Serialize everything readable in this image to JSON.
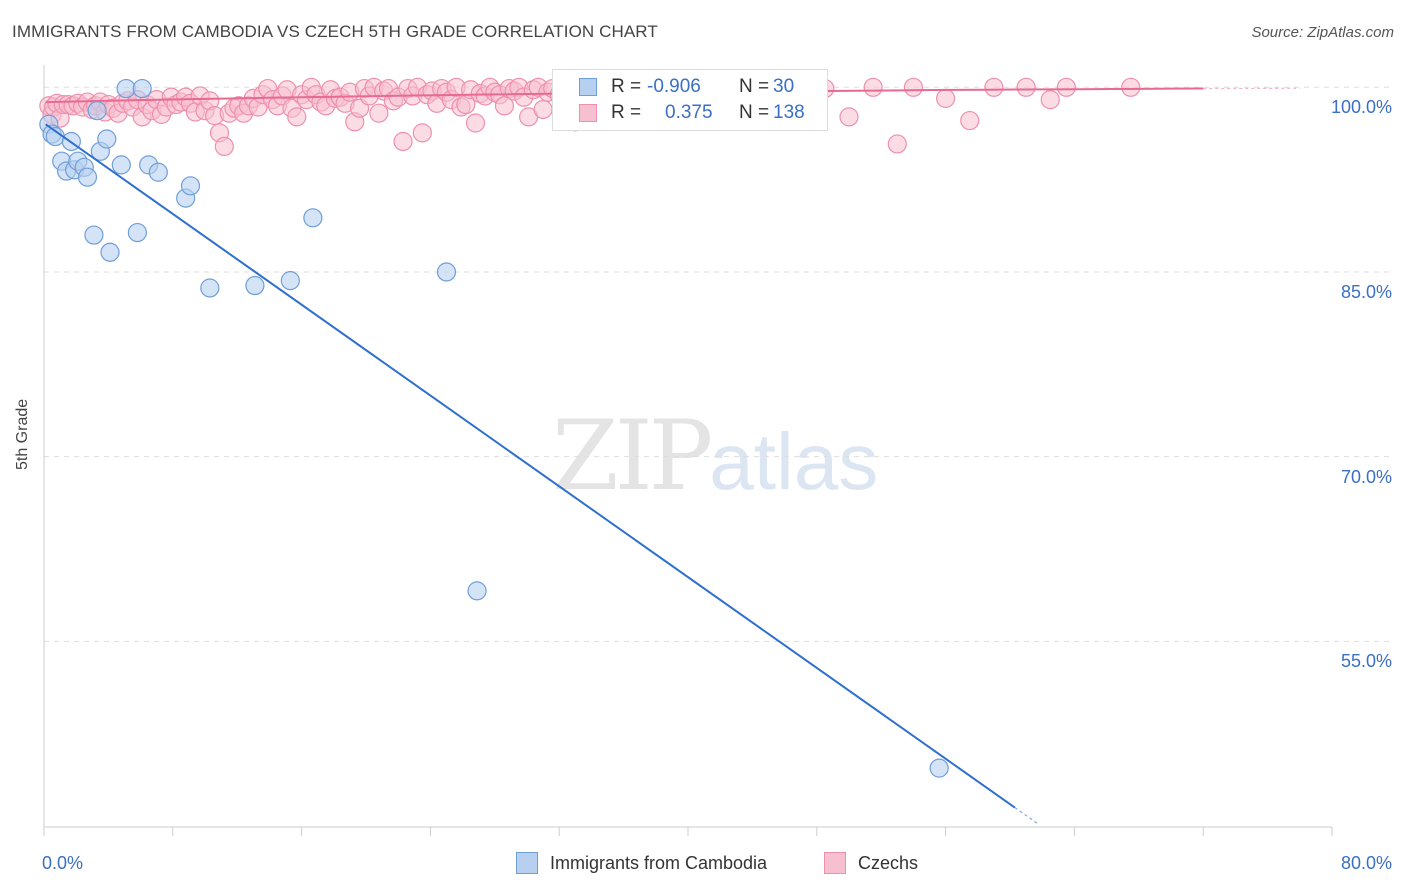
{
  "header": {
    "title": "IMMIGRANTS FROM CAMBODIA VS CZECH 5TH GRADE CORRELATION CHART",
    "source": "Source: ZipAtlas.com"
  },
  "watermark": {
    "zip": "ZIP",
    "atlas": "atlas"
  },
  "legend": {
    "rows": [
      {
        "r_label": "R =",
        "r_value": "-0.906",
        "n_label": "N =",
        "n_value": "30"
      },
      {
        "r_label": "R =",
        "r_value": "0.375",
        "n_label": "N =",
        "n_value": "138"
      }
    ]
  },
  "bottom_legend": {
    "series_a": "Immigrants from Cambodia",
    "series_b": "Czechs"
  },
  "colors": {
    "cambodia_fill": "#b8d0f0",
    "cambodia_stroke": "#6f9fd8",
    "cambodia_line": "#2e6fd0",
    "czech_fill": "#f7c0d0",
    "czech_stroke": "#ee90ad",
    "czech_line": "#e66a92",
    "axis_text": "#3a6fc4"
  },
  "chart_data": {
    "type": "scatter",
    "title": "IMMIGRANTS FROM CAMBODIA VS CZECH 5TH GRADE CORRELATION CHART",
    "xlabel": "",
    "ylabel": "5th Grade",
    "xlim": [
      0,
      80
    ],
    "ylim": [
      40,
      101
    ],
    "x_tick_labels": [
      "0.0%",
      "80.0%"
    ],
    "y_ticks": [
      100,
      85,
      70,
      55
    ],
    "y_tick_labels": [
      "100.0%",
      "85.0%",
      "70.0%",
      "55.0%"
    ],
    "grid": true,
    "legend_position": "top-center",
    "series": [
      {
        "name": "Immigrants from Cambodia",
        "r": -0.906,
        "n": 30,
        "trend": {
          "x": [
            0.1,
            60.3
          ],
          "y": [
            97.0,
            41.5
          ]
        },
        "points": [
          [
            0.3,
            97.0
          ],
          [
            0.5,
            96.2
          ],
          [
            0.7,
            96.0
          ],
          [
            1.1,
            94.0
          ],
          [
            1.4,
            93.2
          ],
          [
            1.7,
            95.6
          ],
          [
            1.9,
            93.3
          ],
          [
            2.1,
            94.0
          ],
          [
            2.5,
            93.5
          ],
          [
            2.7,
            92.7
          ],
          [
            3.1,
            88.0
          ],
          [
            3.3,
            98.1
          ],
          [
            3.5,
            94.8
          ],
          [
            3.9,
            95.8
          ],
          [
            4.1,
            86.6
          ],
          [
            4.8,
            93.7
          ],
          [
            5.1,
            99.9
          ],
          [
            5.8,
            88.2
          ],
          [
            6.1,
            99.9
          ],
          [
            6.5,
            93.7
          ],
          [
            7.1,
            93.1
          ],
          [
            8.8,
            91.0
          ],
          [
            9.1,
            92.0
          ],
          [
            10.3,
            83.7
          ],
          [
            13.1,
            83.9
          ],
          [
            15.3,
            84.3
          ],
          [
            16.7,
            89.4
          ],
          [
            25.0,
            85.0
          ],
          [
            26.9,
            59.1
          ],
          [
            55.6,
            44.7
          ]
        ]
      },
      {
        "name": "Czechs",
        "r": 0.375,
        "n": 138,
        "trend": {
          "x": [
            0.1,
            72.0
          ],
          "y": [
            98.8,
            99.9
          ]
        },
        "points": [
          [
            0.3,
            98.5
          ],
          [
            0.5,
            97.8
          ],
          [
            0.6,
            98.4
          ],
          [
            0.8,
            98.7
          ],
          [
            1.0,
            97.5
          ],
          [
            1.2,
            98.6
          ],
          [
            1.5,
            98.6
          ],
          [
            1.8,
            98.5
          ],
          [
            2.1,
            98.7
          ],
          [
            2.4,
            98.4
          ],
          [
            2.7,
            98.8
          ],
          [
            3.0,
            98.2
          ],
          [
            3.2,
            98.5
          ],
          [
            3.5,
            98.8
          ],
          [
            3.8,
            98.0
          ],
          [
            4.0,
            98.6
          ],
          [
            4.3,
            98.3
          ],
          [
            4.6,
            97.9
          ],
          [
            4.9,
            98.7
          ],
          [
            5.2,
            98.9
          ],
          [
            5.5,
            98.4
          ],
          [
            5.8,
            99.0
          ],
          [
            6.1,
            97.6
          ],
          [
            6.4,
            98.6
          ],
          [
            6.7,
            98.1
          ],
          [
            7.0,
            99.0
          ],
          [
            7.3,
            97.8
          ],
          [
            7.6,
            98.4
          ],
          [
            7.9,
            99.2
          ],
          [
            8.2,
            98.6
          ],
          [
            8.5,
            98.8
          ],
          [
            8.8,
            99.2
          ],
          [
            9.1,
            98.7
          ],
          [
            9.4,
            98.0
          ],
          [
            9.7,
            99.3
          ],
          [
            10.0,
            98.1
          ],
          [
            10.3,
            98.9
          ],
          [
            10.6,
            97.7
          ],
          [
            10.9,
            96.3
          ],
          [
            11.2,
            95.2
          ],
          [
            11.5,
            97.9
          ],
          [
            11.8,
            98.3
          ],
          [
            12.1,
            98.5
          ],
          [
            12.4,
            97.9
          ],
          [
            12.7,
            98.5
          ],
          [
            13.0,
            99.1
          ],
          [
            13.3,
            98.4
          ],
          [
            13.6,
            99.4
          ],
          [
            13.9,
            99.9
          ],
          [
            14.2,
            99.0
          ],
          [
            14.5,
            98.5
          ],
          [
            14.8,
            99.3
          ],
          [
            15.1,
            99.8
          ],
          [
            15.4,
            98.3
          ],
          [
            15.7,
            97.6
          ],
          [
            16.0,
            99.4
          ],
          [
            16.3,
            99.0
          ],
          [
            16.6,
            100.0
          ],
          [
            16.9,
            99.4
          ],
          [
            17.2,
            98.8
          ],
          [
            17.5,
            98.5
          ],
          [
            17.8,
            99.8
          ],
          [
            18.1,
            99.1
          ],
          [
            18.4,
            99.2
          ],
          [
            18.7,
            98.7
          ],
          [
            19.0,
            99.6
          ],
          [
            19.3,
            97.2
          ],
          [
            19.6,
            98.3
          ],
          [
            19.9,
            99.9
          ],
          [
            20.2,
            99.3
          ],
          [
            20.5,
            100.0
          ],
          [
            20.8,
            97.9
          ],
          [
            21.1,
            99.7
          ],
          [
            21.4,
            99.9
          ],
          [
            21.7,
            98.9
          ],
          [
            22.0,
            99.2
          ],
          [
            22.3,
            95.6
          ],
          [
            22.6,
            99.9
          ],
          [
            22.9,
            99.3
          ],
          [
            23.2,
            100.0
          ],
          [
            23.5,
            96.3
          ],
          [
            23.8,
            99.4
          ],
          [
            24.1,
            99.7
          ],
          [
            24.4,
            98.7
          ],
          [
            24.7,
            99.9
          ],
          [
            25.0,
            99.6
          ],
          [
            25.3,
            99.0
          ],
          [
            25.6,
            100.0
          ],
          [
            25.9,
            98.4
          ],
          [
            26.2,
            98.6
          ],
          [
            26.5,
            99.8
          ],
          [
            26.8,
            97.1
          ],
          [
            27.1,
            99.5
          ],
          [
            27.4,
            99.3
          ],
          [
            27.7,
            100.0
          ],
          [
            28.0,
            99.6
          ],
          [
            28.3,
            99.4
          ],
          [
            28.6,
            98.5
          ],
          [
            28.9,
            99.9
          ],
          [
            29.2,
            99.7
          ],
          [
            29.5,
            100.0
          ],
          [
            29.8,
            99.2
          ],
          [
            30.1,
            97.6
          ],
          [
            30.4,
            99.8
          ],
          [
            30.7,
            100.0
          ],
          [
            31.0,
            98.2
          ],
          [
            31.3,
            99.6
          ],
          [
            31.6,
            99.9
          ],
          [
            32.0,
            99.4
          ],
          [
            32.5,
            100.0
          ],
          [
            33.0,
            97.2
          ],
          [
            33.5,
            99.6
          ],
          [
            34.0,
            99.9
          ],
          [
            34.5,
            100.0
          ],
          [
            35.0,
            99.4
          ],
          [
            36.0,
            100.0
          ],
          [
            37.0,
            99.7
          ],
          [
            38.0,
            99.9
          ],
          [
            39.0,
            100.0
          ],
          [
            40.0,
            99.8
          ],
          [
            41.0,
            100.0
          ],
          [
            42.0,
            99.9
          ],
          [
            43.0,
            100.0
          ],
          [
            44.0,
            99.6
          ],
          [
            45.0,
            100.0
          ],
          [
            46.0,
            99.8
          ],
          [
            47.0,
            100.0
          ],
          [
            48.5,
            99.9
          ],
          [
            50.0,
            97.6
          ],
          [
            51.5,
            100.0
          ],
          [
            53.0,
            95.4
          ],
          [
            54.0,
            100.0
          ],
          [
            56.0,
            99.1
          ],
          [
            57.5,
            97.3
          ],
          [
            59.0,
            100.0
          ],
          [
            61.0,
            100.0
          ],
          [
            62.5,
            99.0
          ],
          [
            63.5,
            100.0
          ],
          [
            67.5,
            100.0
          ]
        ]
      }
    ]
  }
}
